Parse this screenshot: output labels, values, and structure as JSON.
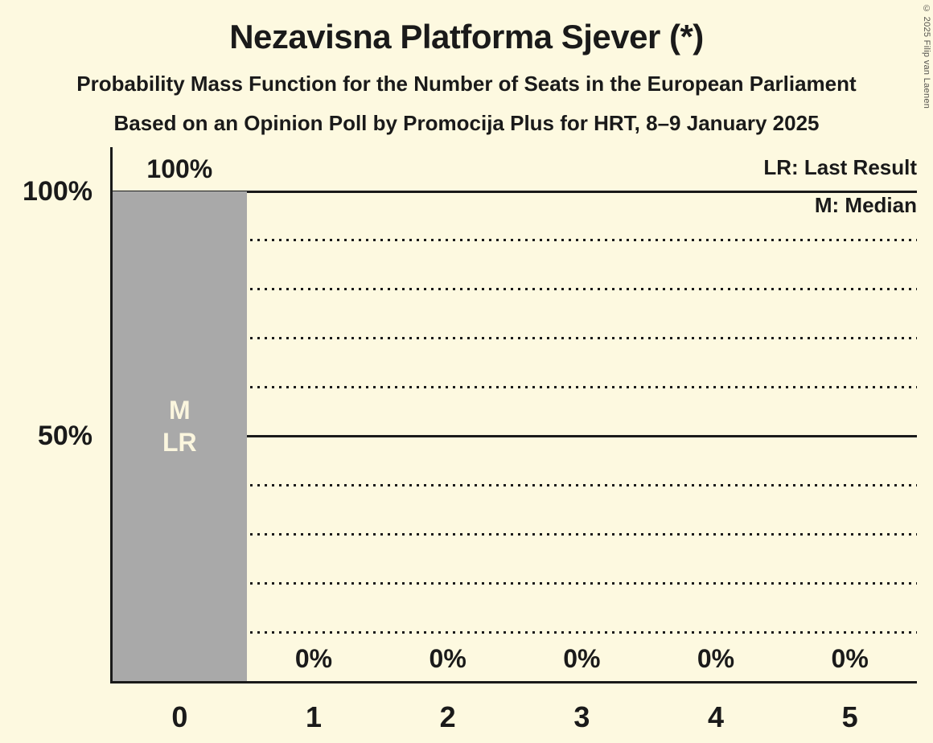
{
  "page": {
    "copyright": "© 2025 Filip van Laenen"
  },
  "chart_data": {
    "type": "bar",
    "title": "Nezavisna Platforma Sjever (*)",
    "subtitle": "Probability Mass Function for the Number of Seats in the European Parliament",
    "subsubtitle": "Based on an Opinion Poll by Promocija Plus for HRT, 8–9 January 2025",
    "categories": [
      "0",
      "1",
      "2",
      "3",
      "4",
      "5"
    ],
    "values": [
      100,
      0,
      0,
      0,
      0,
      0
    ],
    "value_labels": [
      "100%",
      "0%",
      "0%",
      "0%",
      "0%",
      "0%"
    ],
    "xlabel": "",
    "ylabel": "",
    "ylim": [
      0,
      100
    ],
    "yticks": [
      {
        "value": 100,
        "label": "100%"
      },
      {
        "value": 50,
        "label": "50%"
      }
    ],
    "gridlines": {
      "dotted_values": [
        10,
        20,
        30,
        40,
        60,
        70,
        80,
        90
      ],
      "solid_values": [
        50,
        100
      ],
      "grid_on": true
    },
    "legend_position": "top-right",
    "legend": [
      {
        "label": "LR: Last Result"
      },
      {
        "label": "M: Median"
      }
    ],
    "annotations": [
      {
        "category_index": 0,
        "lines": [
          "M",
          "LR"
        ]
      }
    ],
    "colors": {
      "background": "#FDF9E0",
      "bar": "#A9A9A9",
      "text": "#1A1A1A",
      "bar_label": "#FBF6DE",
      "copyright": "#55534E"
    }
  }
}
